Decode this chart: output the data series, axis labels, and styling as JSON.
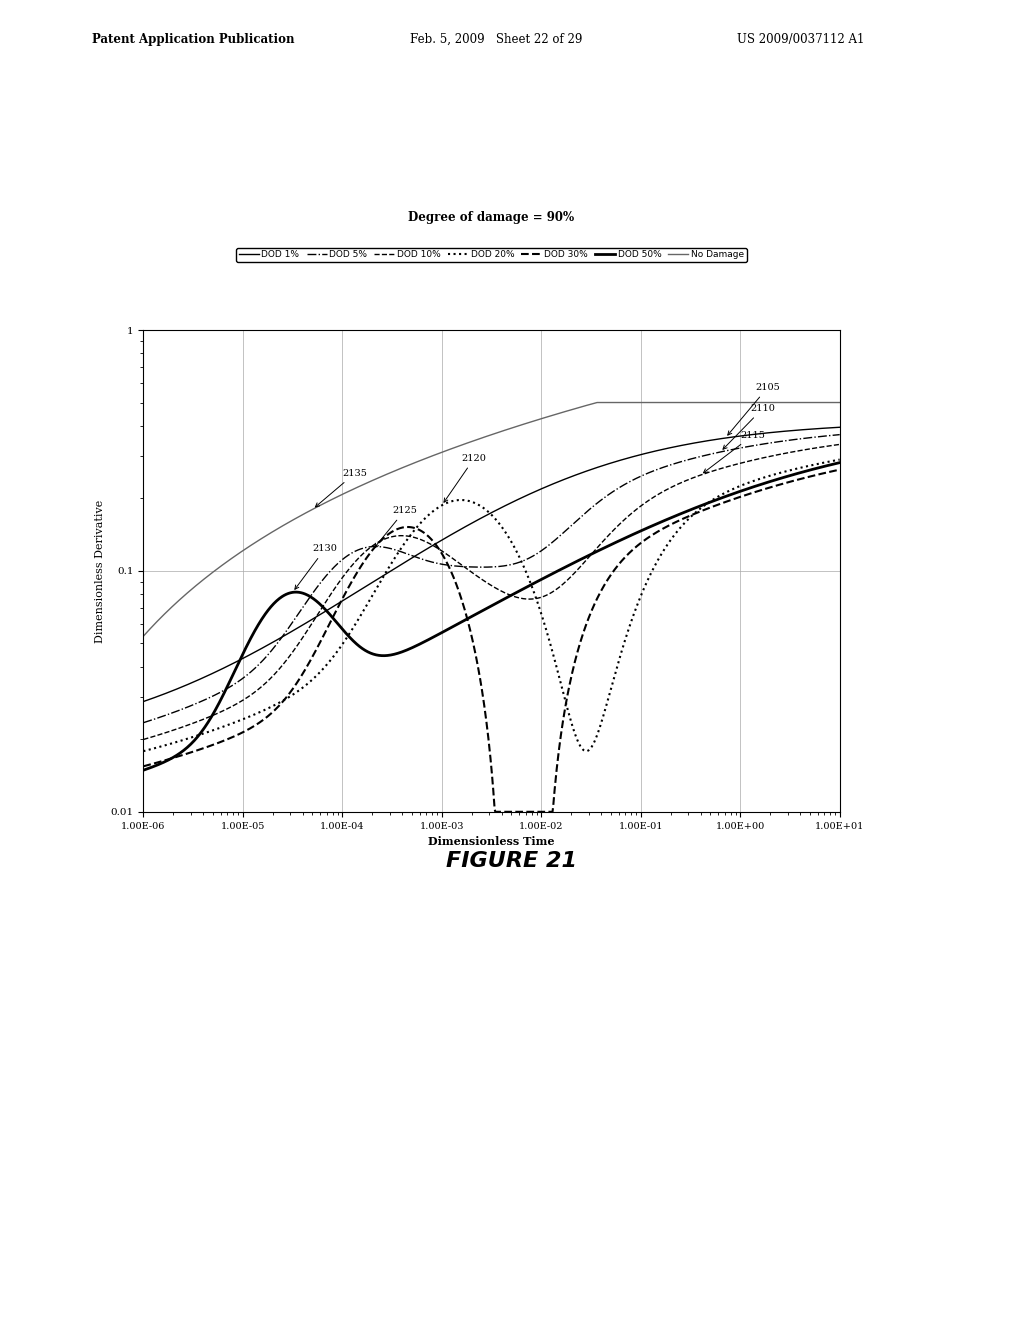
{
  "title": "Degree of damage = 90%",
  "xlabel": "Dimensionless Time",
  "ylabel": "Dimensionless Derivative",
  "background_color": "#ffffff",
  "header_left": "Patent Application Publication",
  "header_center": "Feb. 5, 2009   Sheet 22 of 29",
  "header_right": "US 2009/0037112 A1",
  "figure_label": "FIGURE 21",
  "legend_entries": [
    {
      "label": "DOD 1%",
      "linestyle": "-",
      "linewidth": 1.0,
      "color": "#000000",
      "dashes": null
    },
    {
      "label": "DOD 5%",
      "linestyle": "-.",
      "linewidth": 1.0,
      "color": "#000000",
      "dashes": null
    },
    {
      "label": "DOD 10%",
      "linestyle": "--",
      "linewidth": 1.0,
      "color": "#000000",
      "dashes": [
        4,
        2
      ]
    },
    {
      "label": "DOD 20%",
      "linestyle": ":",
      "linewidth": 1.5,
      "color": "#000000",
      "dashes": null
    },
    {
      "label": "DOD 30%",
      "linestyle": "--",
      "linewidth": 1.5,
      "color": "#000000",
      "dashes": [
        6,
        2
      ]
    },
    {
      "label": "DOD 50%",
      "linestyle": "-",
      "linewidth": 2.0,
      "color": "#000000",
      "dashes": null
    },
    {
      "label": "No Damage",
      "linestyle": "-",
      "linewidth": 1.0,
      "color": "#666666",
      "dashes": null
    }
  ]
}
